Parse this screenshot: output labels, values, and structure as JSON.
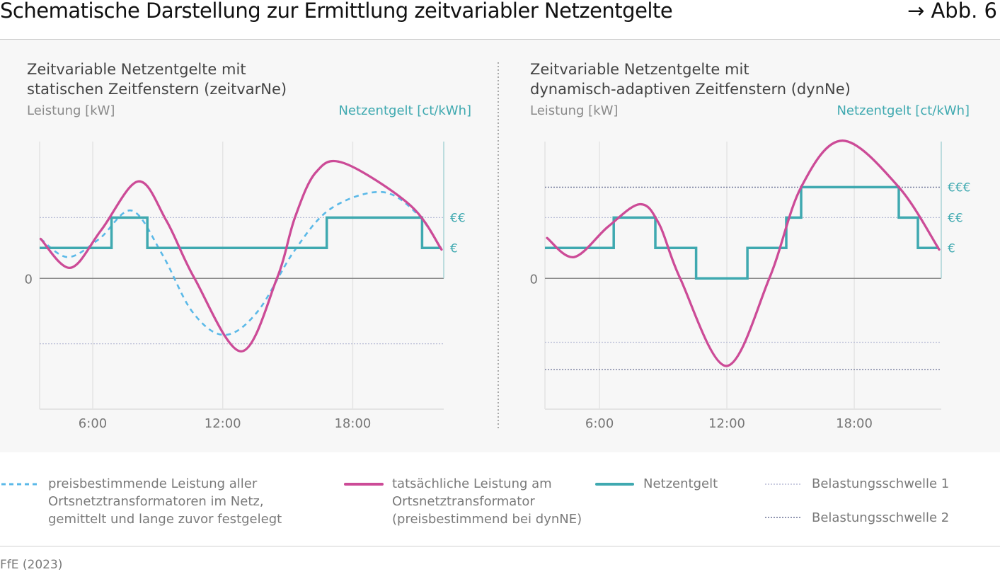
{
  "header": {
    "title": "Schematische Darstellung zur Ermittlung zeitvariabler Netzentgelte",
    "figure_ref": "→ Abb. 6"
  },
  "colors": {
    "actual_load": "#cc4b97",
    "price_load": "#5bb9e8",
    "grid_fee": "#3fa9b0",
    "threshold_1": "#b8bcd6",
    "threshold_2": "#6b7296"
  },
  "chart_data": [
    {
      "type": "line",
      "title_line1": "Zeitvariable Netzentgelte mit",
      "title_line2": "statischen Zeitfenstern (zeitvarNe)",
      "ylabel": "Leistung [kW]",
      "y2label": "Netzentgelt [ct/kWh]",
      "xlim": [
        3.55,
        22.2
      ],
      "ylim": [
        -4.3,
        4.5
      ],
      "x_ticks": [
        {
          "value": 6,
          "label": "6:00"
        },
        {
          "value": 12,
          "label": "12:00"
        },
        {
          "value": 18,
          "label": "18:00"
        }
      ],
      "y_ticks": [
        {
          "value": 0,
          "label": "0"
        }
      ],
      "grid": true,
      "y2_ticks": [
        {
          "value": 1,
          "label": "€"
        },
        {
          "value": 2,
          "label": "€€"
        }
      ],
      "thresholds": [
        {
          "level": 1,
          "values": [
            2,
            -2.15
          ]
        }
      ],
      "series": {
        "price_load": [
          [
            3.6,
            1.3
          ],
          [
            4.85,
            0.7
          ],
          [
            6.3,
            1.3
          ],
          [
            7.8,
            2.23
          ],
          [
            9.2,
            0.8
          ],
          [
            10.6,
            -1.1
          ],
          [
            12.07,
            -1.86
          ],
          [
            13.6,
            -1.1
          ],
          [
            15.3,
            0.9
          ],
          [
            17.0,
            2.3
          ],
          [
            19.35,
            2.84
          ],
          [
            21.0,
            2.1
          ],
          [
            22.1,
            0.95
          ]
        ],
        "actual_load": [
          [
            3.6,
            1.3
          ],
          [
            4.97,
            0.35
          ],
          [
            6.4,
            1.6
          ],
          [
            8.1,
            3.19
          ],
          [
            9.4,
            1.9
          ],
          [
            10.7,
            0
          ],
          [
            12.85,
            -2.4
          ],
          [
            14.5,
            0
          ],
          [
            15.33,
            2.0
          ],
          [
            16.3,
            3.49
          ],
          [
            17.6,
            3.79
          ],
          [
            20.66,
            2.4
          ],
          [
            22.1,
            0.95
          ]
        ],
        "grid_fee": [
          [
            3.55,
            1
          ],
          [
            6.87,
            1
          ],
          [
            6.87,
            2
          ],
          [
            8.52,
            2
          ],
          [
            8.52,
            1
          ],
          [
            16.8,
            1
          ],
          [
            16.8,
            2
          ],
          [
            21.2,
            2
          ],
          [
            21.2,
            1
          ],
          [
            22.1,
            1
          ]
        ]
      }
    },
    {
      "type": "line",
      "title_line1": "Zeitvariable Netzentgelte mit",
      "title_line2": "dynamisch-adaptiven Zeitfenstern (dynNe)",
      "ylabel": "Leistung [kW]",
      "y2label": "Netzentgelt [ct/kWh]",
      "xlim": [
        3.43,
        22.1
      ],
      "ylim": [
        -4.3,
        4.5
      ],
      "x_ticks": [
        {
          "value": 6,
          "label": "6:00"
        },
        {
          "value": 12,
          "label": "12:00"
        },
        {
          "value": 18,
          "label": "18:00"
        }
      ],
      "y_ticks": [
        {
          "value": 0,
          "label": "0"
        }
      ],
      "grid": true,
      "y2_ticks": [
        {
          "value": 1,
          "label": "€"
        },
        {
          "value": 2,
          "label": "€€"
        },
        {
          "value": 3,
          "label": "€€€"
        }
      ],
      "thresholds": [
        {
          "level": 1,
          "values": [
            2,
            -2.1
          ]
        },
        {
          "level": 2,
          "values": [
            3,
            -3.0
          ]
        }
      ],
      "series": {
        "actual_load": [
          [
            3.53,
            1.33
          ],
          [
            4.8,
            0.7
          ],
          [
            6.4,
            1.7
          ],
          [
            7.9,
            2.44
          ],
          [
            8.8,
            1.8
          ],
          [
            9.8,
            0
          ],
          [
            11.97,
            -2.88
          ],
          [
            14.0,
            0
          ],
          [
            15.5,
            3.0
          ],
          [
            17.45,
            4.53
          ],
          [
            20.1,
            3.0
          ],
          [
            22.0,
            0.95
          ]
        ],
        "grid_fee": [
          [
            3.43,
            1
          ],
          [
            6.67,
            1
          ],
          [
            6.67,
            2
          ],
          [
            8.63,
            2
          ],
          [
            8.63,
            1
          ],
          [
            10.55,
            1
          ],
          [
            10.55,
            0
          ],
          [
            12.97,
            0
          ],
          [
            12.97,
            1
          ],
          [
            14.8,
            1
          ],
          [
            14.8,
            2
          ],
          [
            15.5,
            2
          ],
          [
            15.5,
            3
          ],
          [
            20.1,
            3
          ],
          [
            20.1,
            2
          ],
          [
            21.0,
            2
          ],
          [
            21.0,
            1
          ],
          [
            22.0,
            1
          ]
        ]
      }
    }
  ],
  "legend": [
    {
      "key": "price_load",
      "line1": "preisbestimmende Leistung aller",
      "line2": "Ortsnetztransformatoren im Netz,",
      "line3": "gemittelt und lange zuvor festgelegt"
    },
    {
      "key": "actual_load",
      "line1": "tatsächliche Leistung am",
      "line2": "Ortsnetztransformator",
      "line3": "(preisbestimmend bei dynNE)"
    },
    {
      "key": "grid_fee",
      "line1": "Netzentgelt"
    },
    {
      "key": "threshold_1",
      "line1": "Belastungsschwelle 1"
    },
    {
      "key": "threshold_2",
      "line1": "Belastungsschwelle 2"
    }
  ],
  "source": "FfE (2023)"
}
